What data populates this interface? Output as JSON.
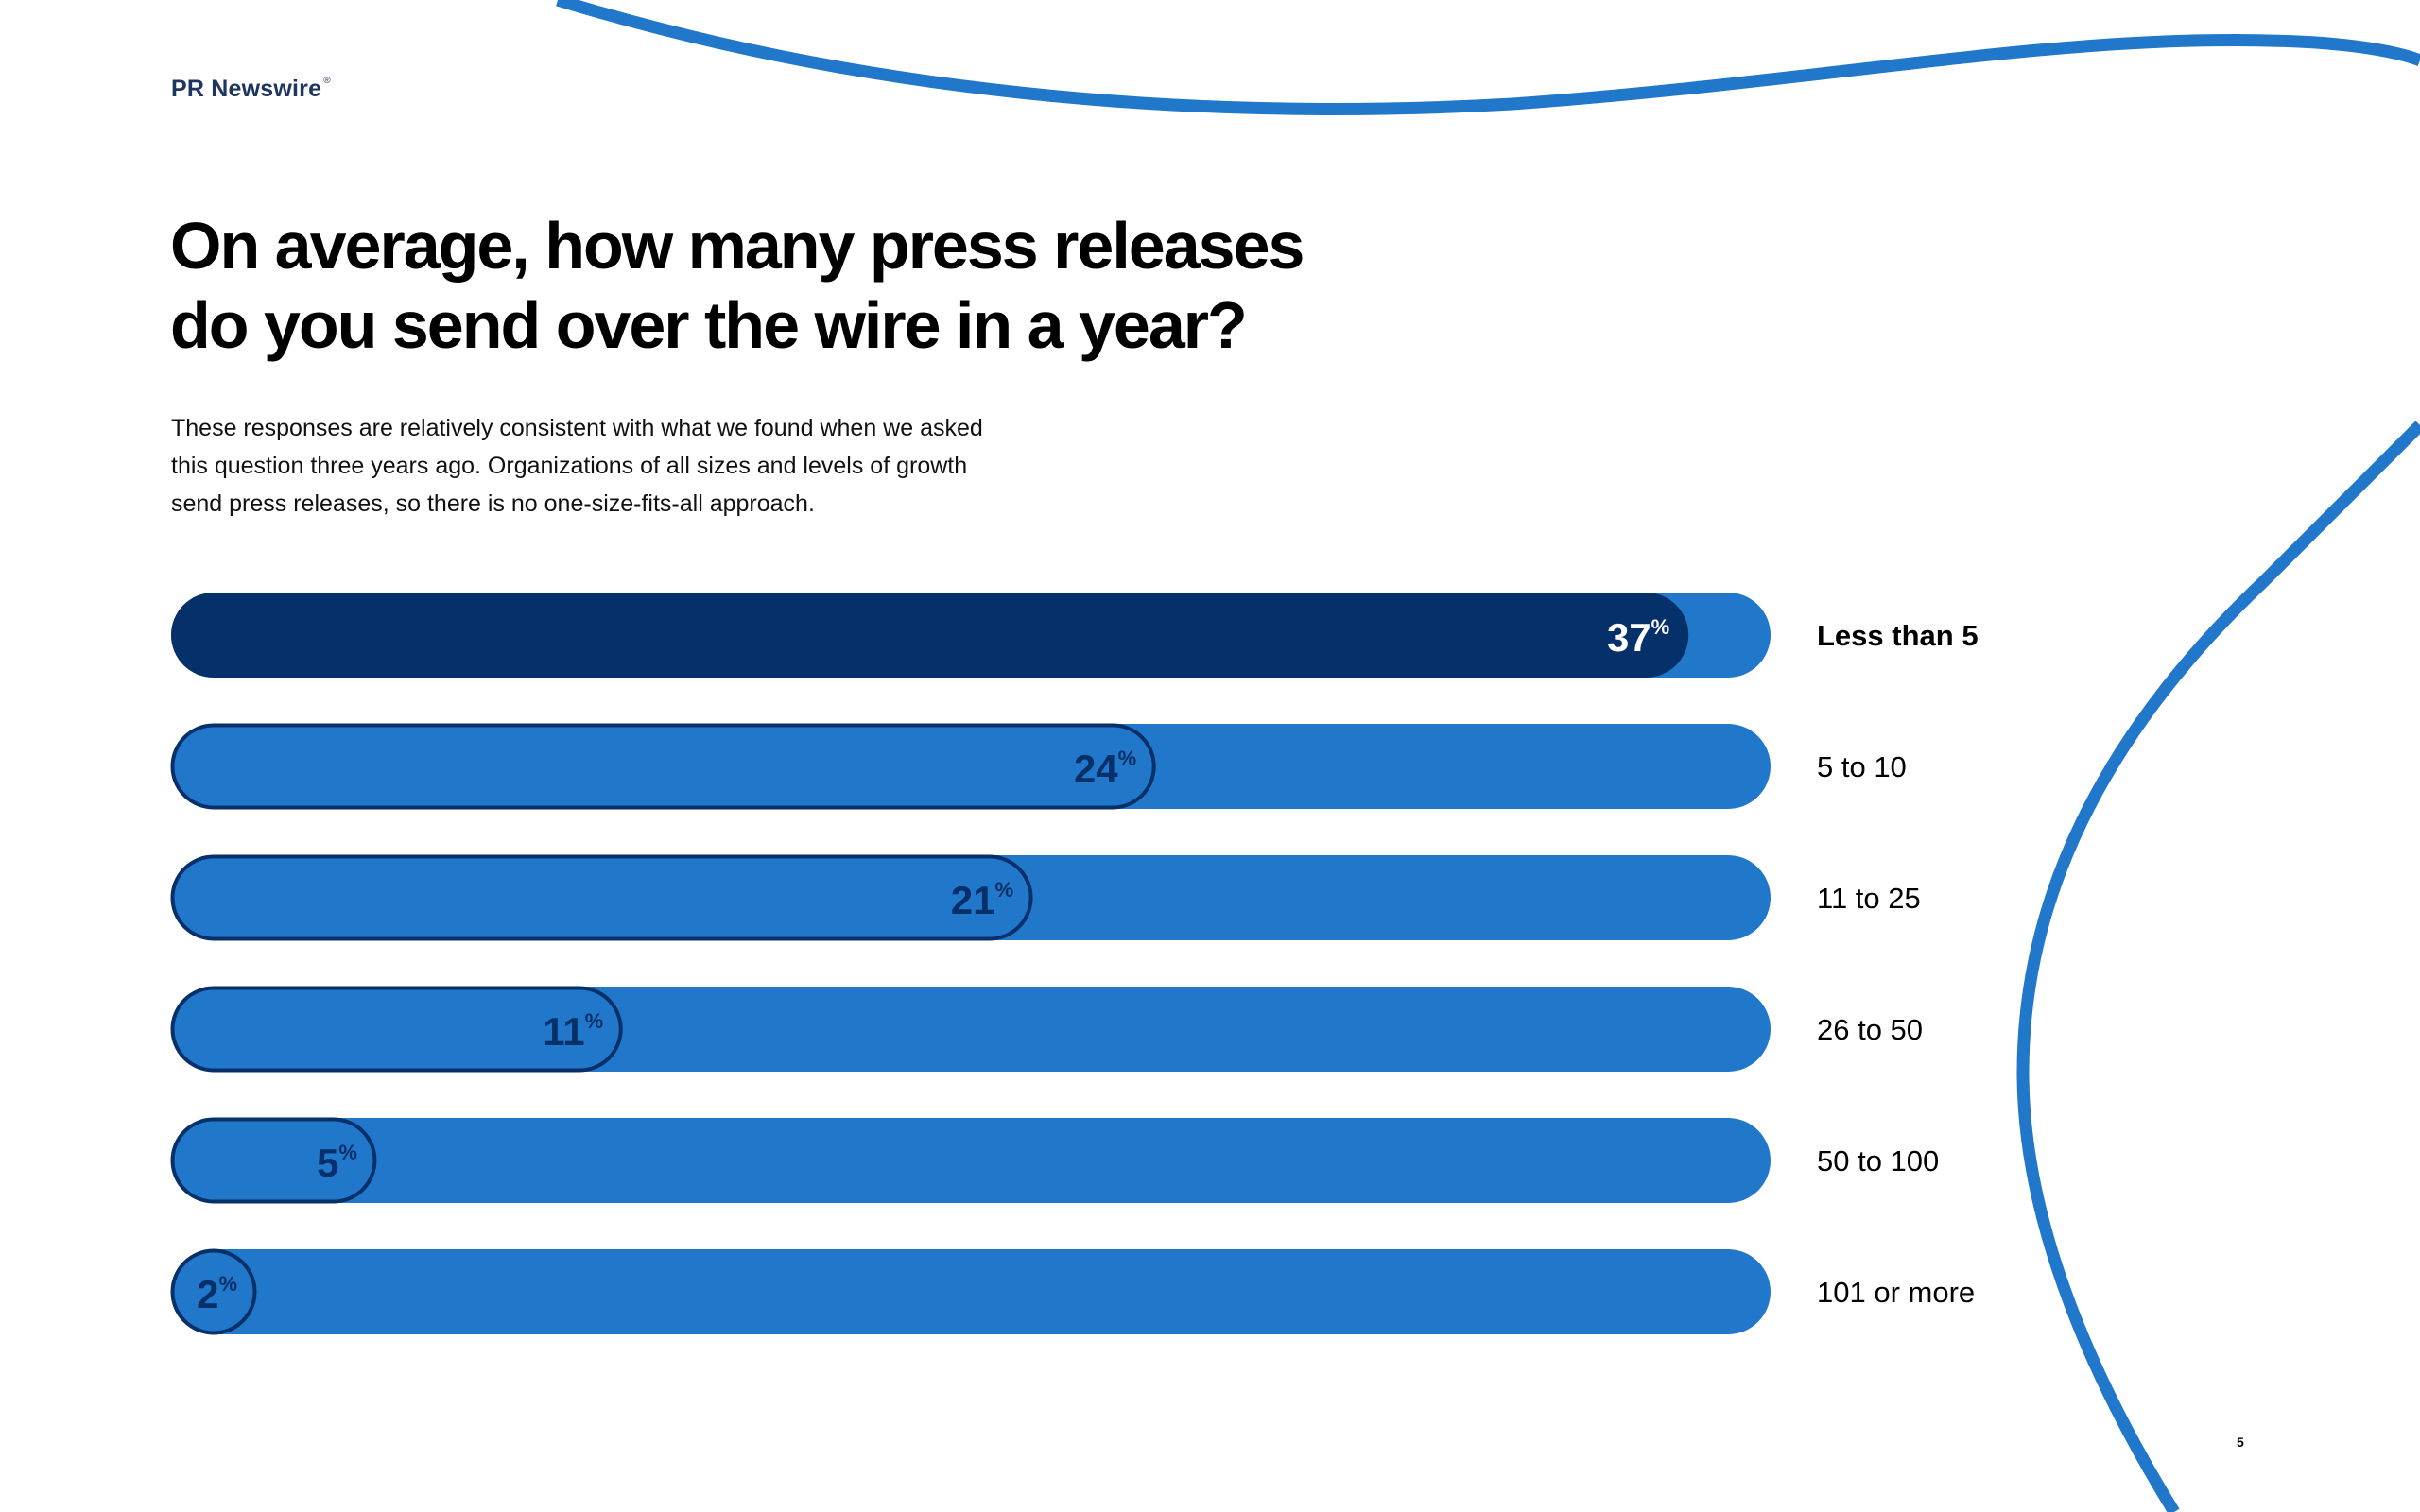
{
  "header": {
    "brand": "PR Newswire",
    "brand_mark": "®"
  },
  "title_line1": "On average, how many press releases",
  "title_line2": "do you send over the wire in a year?",
  "subtitle_lines": [
    "These responses are relatively consistent with what we found when we asked",
    "this question three years ago. Organizations of all sizes and levels of growth",
    "send press releases, so there is no one-size-fits-all approach."
  ],
  "page_number": "5",
  "colors": {
    "dark": "#06306a",
    "track": "#2177ca",
    "decor_line": "#2177ca",
    "highlight_text": "#ffffff"
  },
  "chart_data": {
    "type": "bar",
    "orientation": "horizontal",
    "categories": [
      "Less than 5",
      "5 to 10",
      "11 to 25",
      "26 to 50",
      "50 to 100",
      "101 or more"
    ],
    "values": [
      37,
      24,
      21,
      11,
      5,
      2
    ],
    "value_suffix": "%",
    "title": "On average, how many press releases do you send over the wire in a year?",
    "xlim": [
      0,
      39
    ],
    "highlight_index": 0
  }
}
